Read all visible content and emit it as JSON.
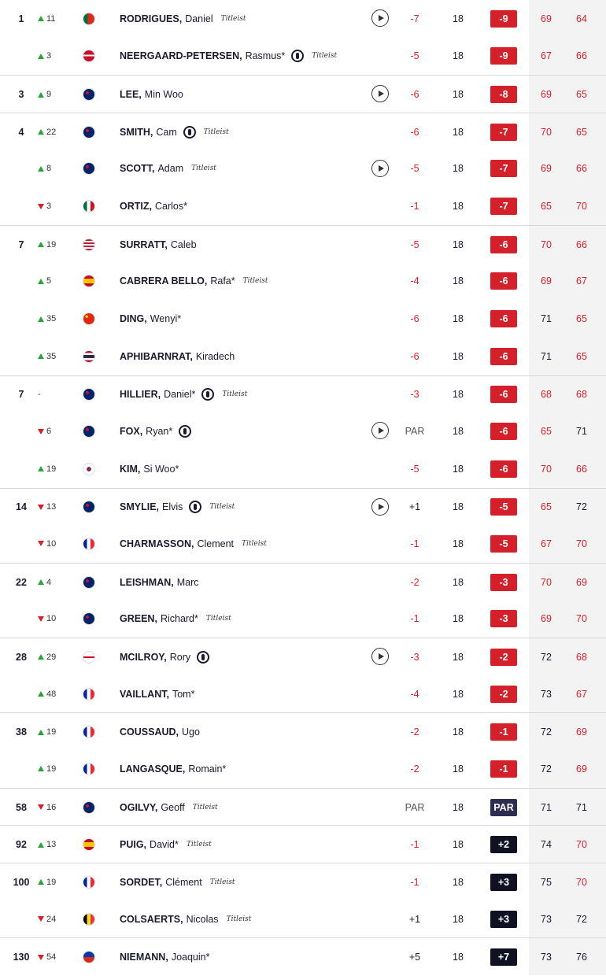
{
  "leaderboard": {
    "rows": [
      {
        "pos": 1,
        "move_dir": "up",
        "move": 11,
        "last": "RODRIGUES,",
        "first": "Daniel",
        "sponsor": "Titleist",
        "play": true,
        "today": "-7",
        "thru": 18,
        "total": "-9",
        "r1": 69,
        "r2": 64
      },
      {
        "pos": null,
        "move_dir": "up",
        "move": 3,
        "last": "NEERGAARD-PETERSEN,",
        "first": "Rasmus*",
        "open": true,
        "sponsor": "Titleist",
        "today": "-5",
        "thru": 18,
        "total": "-9",
        "r1": 67,
        "r2": 66
      },
      {
        "pos": 3,
        "move_dir": "up",
        "move": 9,
        "last": "LEE,",
        "first": "Min Woo",
        "play": true,
        "today": "-6",
        "thru": 18,
        "total": "-8",
        "r1": 69,
        "r2": 65
      },
      {
        "pos": 4,
        "move_dir": "up",
        "move": 22,
        "last": "SMITH,",
        "first": "Cam",
        "open": true,
        "sponsor": "Titleist",
        "today": "-6",
        "thru": 18,
        "total": "-7",
        "r1": 70,
        "r2": 65
      },
      {
        "pos": null,
        "move_dir": "up",
        "move": 8,
        "last": "SCOTT,",
        "first": "Adam",
        "sponsor": "Titleist",
        "play": true,
        "today": "-5",
        "thru": 18,
        "total": "-7",
        "r1": 69,
        "r2": 66
      },
      {
        "pos": null,
        "move_dir": "down",
        "move": 3,
        "last": "ORTIZ,",
        "first": "Carlos*",
        "today": "-1",
        "thru": 18,
        "total": "-7",
        "r1": 65,
        "r2": 70
      },
      {
        "pos": 7,
        "move_dir": "up",
        "move": 19,
        "last": "SURRATT,",
        "first": "Caleb",
        "today": "-5",
        "thru": 18,
        "total": "-6",
        "r1": 70,
        "r2": 66
      },
      {
        "pos": null,
        "move_dir": "up",
        "move": 5,
        "last": "CABRERA BELLO,",
        "first": "Rafa*",
        "sponsor": "Titleist",
        "today": "-4",
        "thru": 18,
        "total": "-6",
        "r1": 69,
        "r2": 67
      },
      {
        "pos": null,
        "move_dir": "up",
        "move": 35,
        "last": "DING,",
        "first": "Wenyi*",
        "today": "-6",
        "thru": 18,
        "total": "-6",
        "r1": 71,
        "r2": 65
      },
      {
        "pos": null,
        "move_dir": "up",
        "move": 35,
        "last": "APHIBARNRAT,",
        "first": "Kiradech",
        "today": "-6",
        "thru": 18,
        "total": "-6",
        "r1": 71,
        "r2": 65
      },
      {
        "pos": 7,
        "move_dir": null,
        "move": "-",
        "last": "HILLIER,",
        "first": "Daniel*",
        "open": true,
        "sponsor": "Titleist",
        "today": "-3",
        "thru": 18,
        "total": "-6",
        "r1": 68,
        "r2": 68
      },
      {
        "pos": null,
        "move_dir": "down",
        "move": 6,
        "last": "FOX,",
        "first": "Ryan*",
        "open": true,
        "play": true,
        "today": "PAR",
        "thru": 18,
        "total": "-6",
        "r1": 65,
        "r2": 71
      },
      {
        "pos": null,
        "move_dir": "up",
        "move": 19,
        "last": "KIM,",
        "first": "Si Woo*",
        "today": "-5",
        "thru": 18,
        "total": "-6",
        "r1": 70,
        "r2": 66
      },
      {
        "pos": 14,
        "move_dir": "down",
        "move": 13,
        "last": "SMYLIE,",
        "first": "Elvis",
        "open": true,
        "sponsor": "Titleist",
        "play": true,
        "today": "+1",
        "thru": 18,
        "total": "-5",
        "r1": 65,
        "r2": 72
      },
      {
        "pos": null,
        "move_dir": "down",
        "move": 10,
        "last": "CHARMASSON,",
        "first": "Clement",
        "sponsor": "Titleist",
        "today": "-1",
        "thru": 18,
        "total": "-5",
        "r1": 67,
        "r2": 70
      },
      {
        "pos": 22,
        "move_dir": "up",
        "move": 4,
        "last": "LEISHMAN,",
        "first": "Marc",
        "today": "-2",
        "thru": 18,
        "total": "-3",
        "r1": 70,
        "r2": 69
      },
      {
        "pos": null,
        "move_dir": "down",
        "move": 10,
        "last": "GREEN,",
        "first": "Richard*",
        "sponsor": "Titleist",
        "today": "-1",
        "thru": 18,
        "total": "-3",
        "r1": 69,
        "r2": 70
      },
      {
        "pos": 28,
        "move_dir": "up",
        "move": 29,
        "last": "MCILROY,",
        "first": "Rory",
        "open": true,
        "play": true,
        "today": "-3",
        "thru": 18,
        "total": "-2",
        "r1": 72,
        "r2": 68
      },
      {
        "pos": null,
        "move_dir": "up",
        "move": 48,
        "last": "VAILLANT,",
        "first": "Tom*",
        "today": "-4",
        "thru": 18,
        "total": "-2",
        "r1": 73,
        "r2": 67
      },
      {
        "pos": 38,
        "move_dir": "up",
        "move": 19,
        "last": "COUSSAUD,",
        "first": "Ugo",
        "today": "-2",
        "thru": 18,
        "total": "-1",
        "r1": 72,
        "r2": 69
      },
      {
        "pos": null,
        "move_dir": "up",
        "move": 19,
        "last": "LANGASQUE,",
        "first": "Romain*",
        "today": "-2",
        "thru": 18,
        "total": "-1",
        "r1": 72,
        "r2": 69
      },
      {
        "pos": 58,
        "move_dir": "down",
        "move": 16,
        "last": "OGILVY,",
        "first": "Geoff",
        "sponsor": "Titleist",
        "today": "PAR",
        "thru": 18,
        "total": "PAR",
        "r1": 71,
        "r2": 71
      },
      {
        "pos": 92,
        "move_dir": "up",
        "move": 13,
        "last": "PUIG,",
        "first": "David*",
        "sponsor": "Titleist",
        "today": "-1",
        "thru": 18,
        "total": "+2",
        "r1": 74,
        "r2": 70
      },
      {
        "pos": 100,
        "move_dir": "up",
        "move": 19,
        "last": "SORDET,",
        "first": "Clément",
        "sponsor": "Titleist",
        "today": "-1",
        "thru": 18,
        "total": "+3",
        "r1": 75,
        "r2": 70
      },
      {
        "pos": null,
        "move_dir": "down",
        "move": 24,
        "last": "COLSAERTS,",
        "first": "Nicolas",
        "sponsor": "Titleist",
        "today": "+1",
        "thru": 18,
        "total": "+3",
        "r1": 73,
        "r2": 72
      },
      {
        "pos": 130,
        "move_dir": "down",
        "move": 54,
        "last": "NIEMANN,",
        "first": "Joaquin*",
        "today": "+5",
        "thru": 18,
        "total": "+7",
        "r1": 73,
        "r2": 76
      }
    ]
  }
}
